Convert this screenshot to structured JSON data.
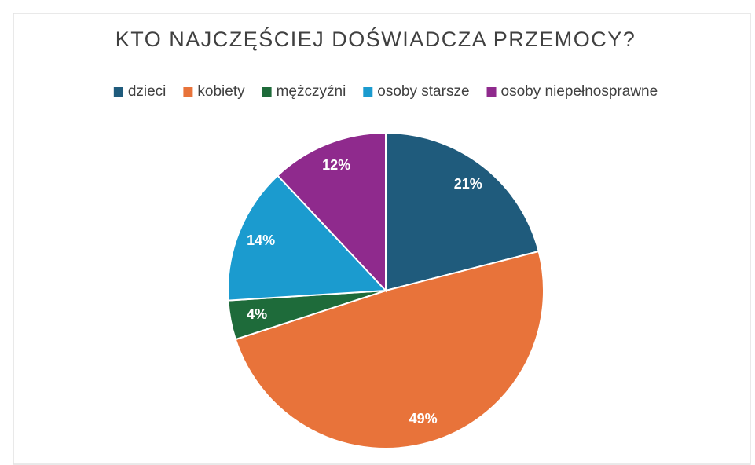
{
  "chart_data": {
    "type": "pie",
    "title": "KTO NAJCZĘŚCIEJ DOŚWIADCZA PRZEMOCY?",
    "categories": [
      "dzieci",
      "kobiety",
      "mężczyźni",
      "osoby starsze",
      "osoby niepełnosprawne"
    ],
    "values": [
      21,
      49,
      4,
      14,
      12
    ],
    "value_labels": [
      "21%",
      "49%",
      "4%",
      "14%",
      "12%"
    ],
    "colors": [
      "#1f5b7c",
      "#e8733a",
      "#1e6b3a",
      "#1b9bcf",
      "#8f2a8d"
    ],
    "legend": "top"
  }
}
